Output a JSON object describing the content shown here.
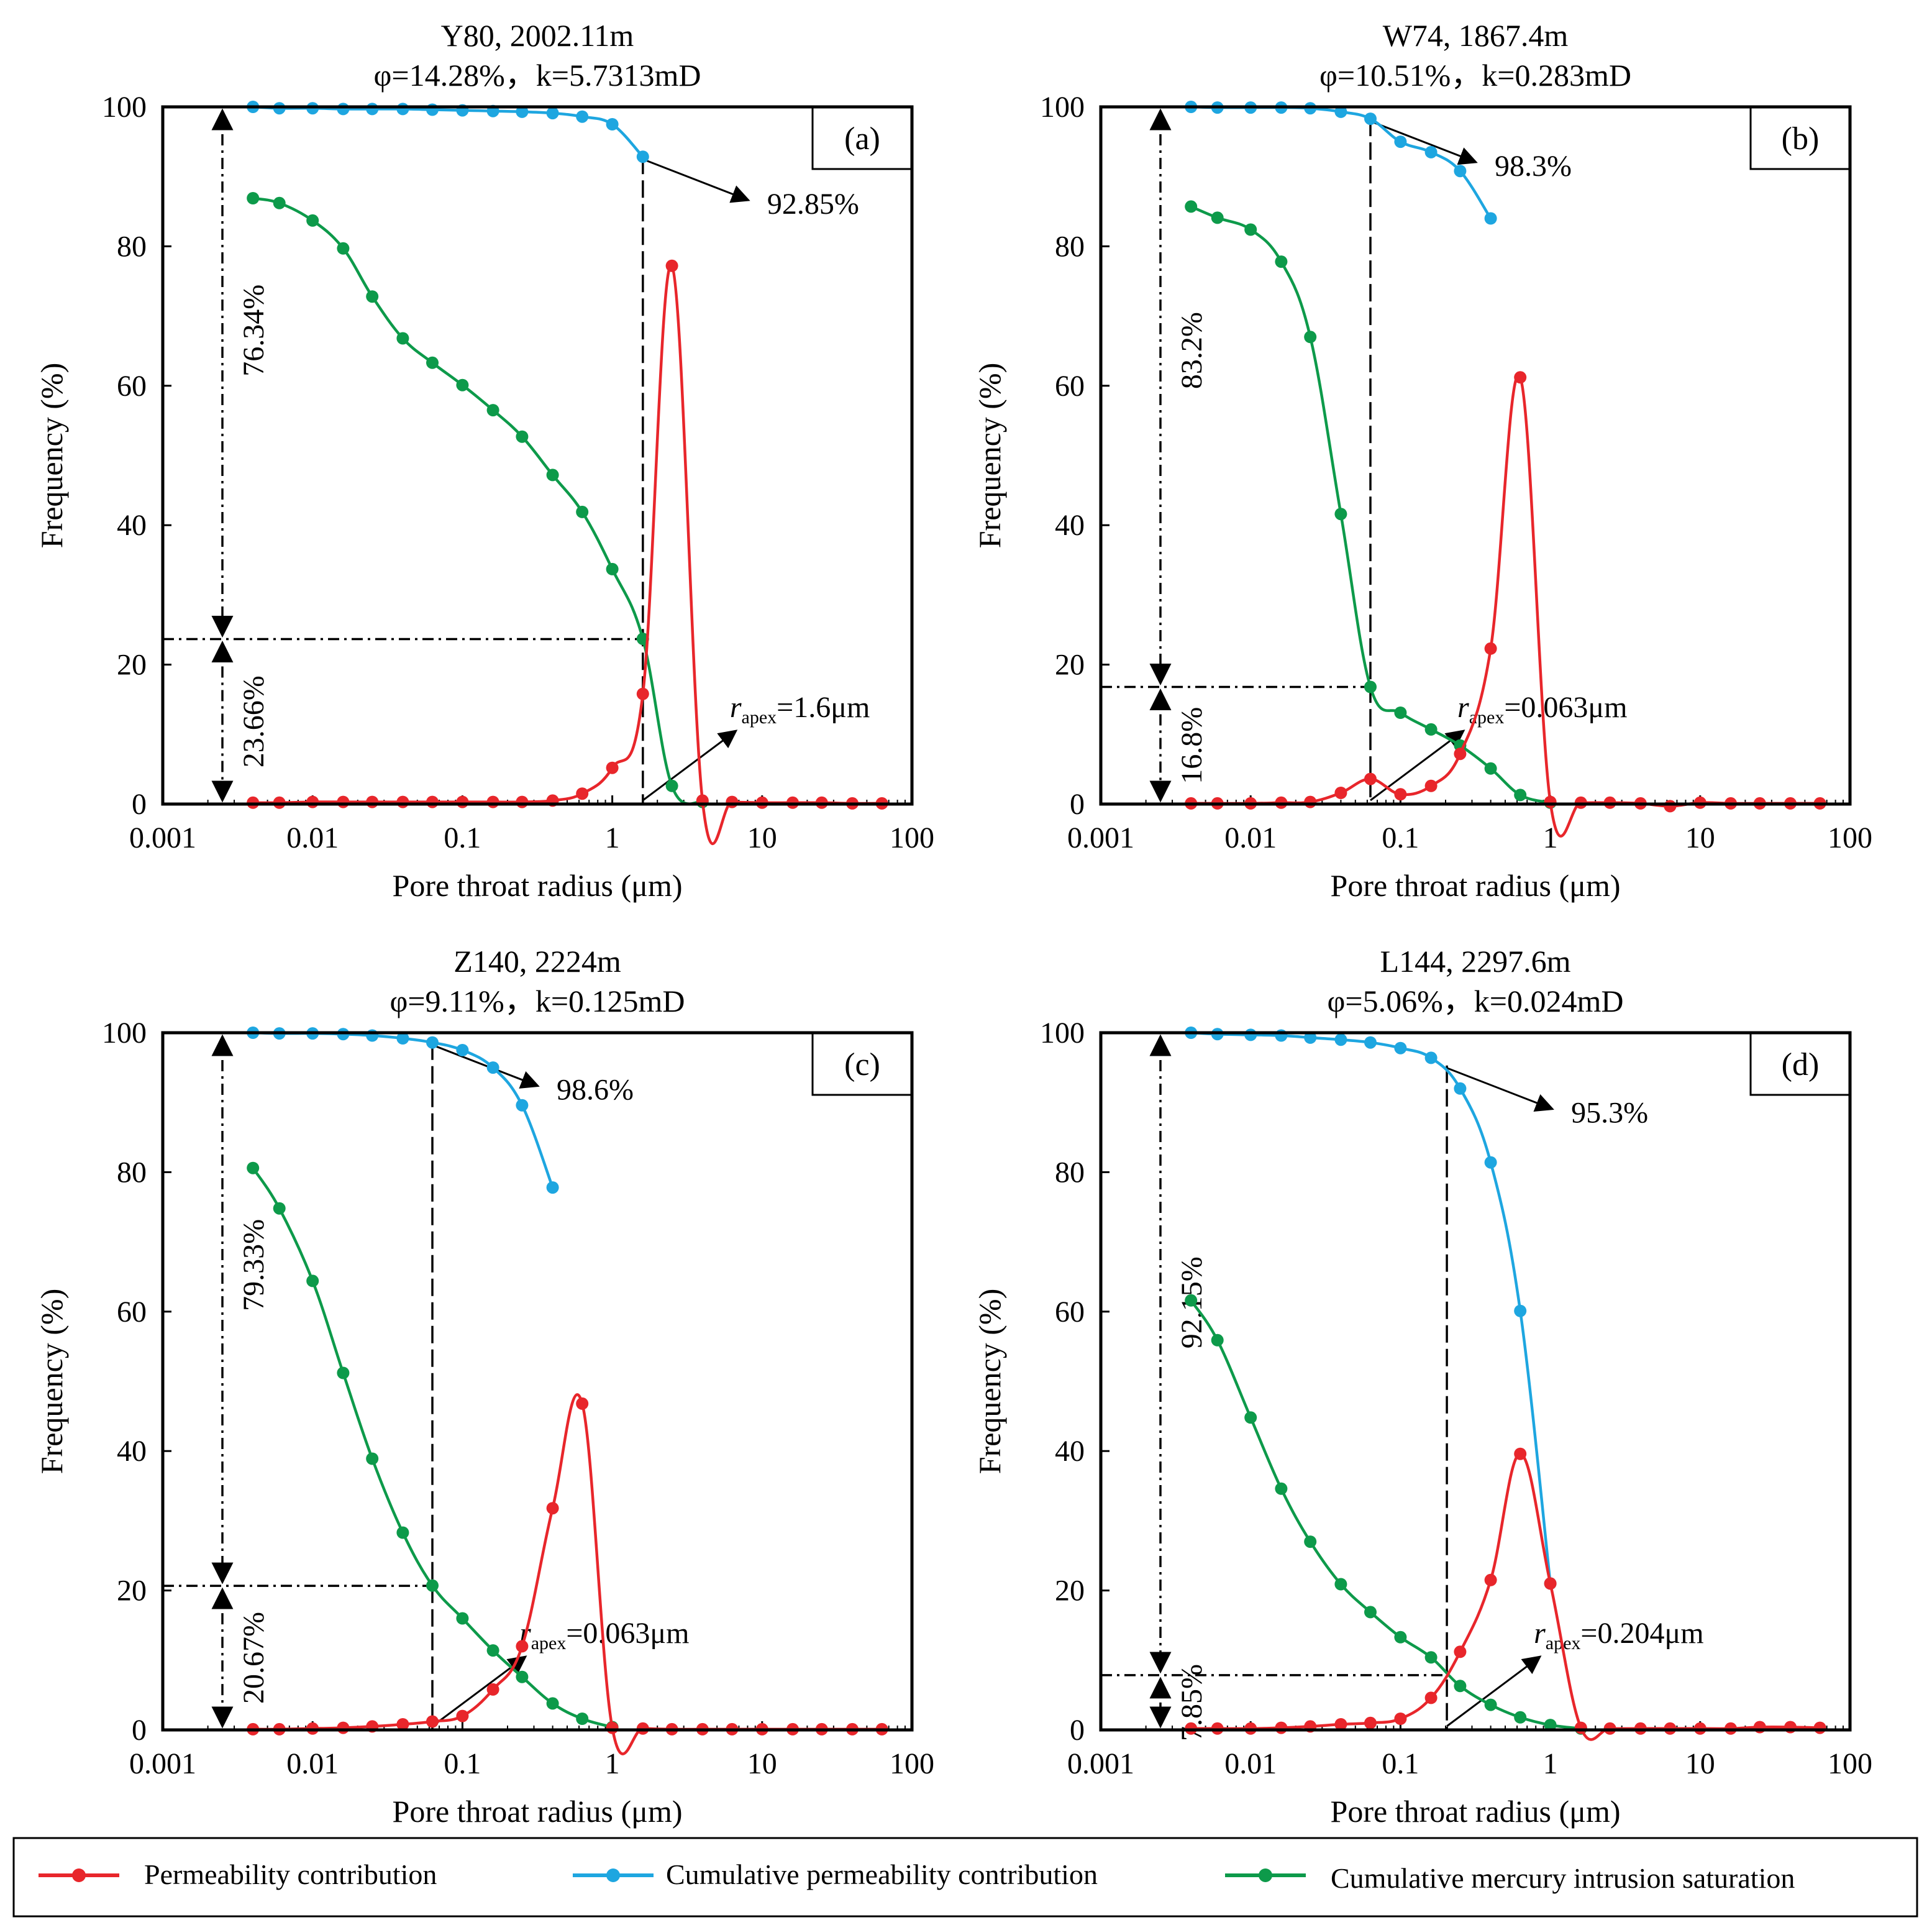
{
  "colors": {
    "permeability_contribution": "#e8262b",
    "cumulative_permeability_contribution": "#1ea6e0",
    "cumulative_mercury_intrusion_saturation": "#0d9a4a"
  },
  "legend": [
    {
      "key": "permeability_contribution",
      "label": "Permeability contribution"
    },
    {
      "key": "cumulative_permeability_contribution",
      "label": "Cumulative permeability contribution"
    },
    {
      "key": "cumulative_mercury_intrusion_saturation",
      "label": "Cumulative mercury intrusion saturation"
    }
  ],
  "chart_data": [
    {
      "type": "line",
      "panel_label": "(a)",
      "title": "Y80, 2002.11m",
      "subtitle": "φ=14.28%，k=5.7313mD",
      "xlabel": "Pore throat radius (μm)",
      "ylabel": "Frequency (%)",
      "xscale": "log",
      "xlim": [
        0.001,
        100
      ],
      "ylim": [
        0,
        100
      ],
      "xticks": [
        "0.001",
        "0.01",
        "0.1",
        "1",
        "10",
        "100"
      ],
      "yticks": [
        "0",
        "20",
        "40",
        "60",
        "80",
        "100"
      ],
      "x": [
        0.004,
        0.006,
        0.01,
        0.016,
        0.025,
        0.04,
        0.063,
        0.1,
        0.16,
        0.25,
        0.4,
        0.63,
        1.0,
        1.6,
        2.5,
        4.0,
        6.3,
        10,
        16,
        25,
        40,
        63
      ],
      "series": [
        {
          "name": "Permeability contribution",
          "key": "permeability_contribution",
          "values": [
            0.2,
            0.2,
            0.3,
            0.3,
            0.3,
            0.3,
            0.3,
            0.3,
            0.3,
            0.3,
            0.5,
            1.5,
            5.2,
            15.8,
            77.2,
            0.5,
            0.3,
            0.2,
            0.2,
            0.2,
            0.1,
            0.1
          ]
        },
        {
          "name": "Cumulative permeability contribution",
          "key": "cumulative_permeability_contribution",
          "values": [
            100,
            99.8,
            99.8,
            99.7,
            99.7,
            99.7,
            99.6,
            99.5,
            99.4,
            99.3,
            99.1,
            98.6,
            97.5,
            92.85,
            null,
            null,
            null,
            null,
            null,
            null,
            null,
            null
          ]
        },
        {
          "name": "Cumulative mercury intrusion saturation",
          "key": "cumulative_mercury_intrusion_saturation",
          "values": [
            86.9,
            86.2,
            83.7,
            79.7,
            72.8,
            66.8,
            63.3,
            60.1,
            56.5,
            52.7,
            47.2,
            41.9,
            33.7,
            23.7,
            2.6,
            0.3,
            null,
            null,
            null,
            null,
            null,
            null
          ]
        }
      ],
      "annotations": {
        "upper_pct": "76.34%",
        "lower_pct": "23.66%",
        "split_y": 23.66,
        "apex_x": 1.6,
        "cum_point_y": 92.85,
        "cum_label": "92.85%",
        "r_apex_italic": "r",
        "r_apex_sub": "apex",
        "r_apex_value": "=1.6μm"
      }
    },
    {
      "type": "line",
      "panel_label": "(b)",
      "title": "W74, 1867.4m",
      "subtitle": "φ=10.51%，k=0.283mD",
      "xlabel": "Pore throat radius (μm)",
      "ylabel": "Frequency (%)",
      "xscale": "log",
      "xlim": [
        0.001,
        100
      ],
      "ylim": [
        0,
        100
      ],
      "xticks": [
        "0.001",
        "0.01",
        "0.1",
        "1",
        "10",
        "100"
      ],
      "yticks": [
        "0",
        "20",
        "40",
        "60",
        "80",
        "100"
      ],
      "x": [
        0.004,
        0.006,
        0.01,
        0.016,
        0.025,
        0.04,
        0.063,
        0.1,
        0.16,
        0.25,
        0.4,
        0.63,
        1.0,
        1.6,
        2.5,
        4.0,
        6.3,
        10,
        16,
        25,
        40,
        63
      ],
      "series": [
        {
          "name": "Permeability contribution",
          "key": "permeability_contribution",
          "values": [
            0.1,
            0.1,
            0.1,
            0.2,
            0.3,
            1.6,
            3.6,
            1.4,
            2.6,
            7.2,
            22.3,
            61.2,
            0.3,
            0.2,
            0.2,
            0.1,
            -0.3,
            0.2,
            0.1,
            0.1,
            0.1,
            0.1
          ]
        },
        {
          "name": "Cumulative permeability contribution",
          "key": "cumulative_permeability_contribution",
          "values": [
            100,
            99.9,
            99.9,
            99.9,
            99.8,
            99.3,
            98.3,
            95.0,
            93.5,
            90.8,
            84.0,
            null,
            null,
            null,
            null,
            null,
            null,
            null,
            null,
            null,
            null,
            null
          ]
        },
        {
          "name": "Cumulative mercury intrusion saturation",
          "key": "cumulative_mercury_intrusion_saturation",
          "values": [
            85.7,
            84.1,
            82.4,
            77.8,
            67.0,
            41.6,
            16.8,
            13.1,
            10.7,
            8.4,
            5.1,
            1.3,
            0.2,
            null,
            null,
            null,
            null,
            null,
            null,
            null,
            null,
            null
          ]
        }
      ],
      "annotations": {
        "upper_pct": "83.2%",
        "lower_pct": "16.8%",
        "split_y": 16.8,
        "apex_x": 0.063,
        "cum_point_y": 98.3,
        "cum_label": "98.3%",
        "r_apex_italic": "r",
        "r_apex_sub": "apex",
        "r_apex_value": "=0.063μm"
      }
    },
    {
      "type": "line",
      "panel_label": "(c)",
      "title": "Z140, 2224m",
      "subtitle": "φ=9.11%，k=0.125mD",
      "xlabel": "Pore throat radius (μm)",
      "ylabel": "Frequency (%)",
      "xscale": "log",
      "xlim": [
        0.001,
        100
      ],
      "ylim": [
        0,
        100
      ],
      "xticks": [
        "0.001",
        "0.01",
        "0.1",
        "1",
        "10",
        "100"
      ],
      "yticks": [
        "0",
        "20",
        "40",
        "60",
        "80",
        "100"
      ],
      "x": [
        0.004,
        0.006,
        0.01,
        0.016,
        0.025,
        0.04,
        0.063,
        0.1,
        0.16,
        0.25,
        0.4,
        0.63,
        1.0,
        1.6,
        2.5,
        4.0,
        6.3,
        10,
        16,
        25,
        40,
        63
      ],
      "series": [
        {
          "name": "Permeability contribution",
          "key": "permeability_contribution",
          "values": [
            0.1,
            0.1,
            0.2,
            0.3,
            0.5,
            0.8,
            1.2,
            2.0,
            5.8,
            12.0,
            31.8,
            46.8,
            0.3,
            0.2,
            0.1,
            0.1,
            0.1,
            0.1,
            0.1,
            0.1,
            0.1,
            0.1
          ]
        },
        {
          "name": "Cumulative permeability contribution",
          "key": "cumulative_permeability_contribution",
          "values": [
            100,
            99.9,
            99.9,
            99.8,
            99.6,
            99.2,
            98.6,
            97.5,
            95.0,
            89.6,
            77.8,
            null,
            null,
            null,
            null,
            null,
            null,
            null,
            null,
            null,
            null,
            null
          ]
        },
        {
          "name": "Cumulative mercury intrusion saturation",
          "key": "cumulative_mercury_intrusion_saturation",
          "values": [
            80.6,
            74.8,
            64.4,
            51.2,
            38.9,
            28.3,
            20.7,
            16.0,
            11.4,
            7.6,
            3.8,
            1.6,
            0.4,
            null,
            null,
            null,
            null,
            null,
            null,
            null,
            null,
            null
          ]
        }
      ],
      "annotations": {
        "upper_pct": "79.33%",
        "lower_pct": "20.67%",
        "split_y": 20.67,
        "apex_x": 0.063,
        "cum_point_y": 98.6,
        "cum_label": "98.6%",
        "r_apex_italic": "r",
        "r_apex_sub": "apex",
        "r_apex_value": "=0.063μm"
      }
    },
    {
      "type": "line",
      "panel_label": "(d)",
      "title": "L144, 2297.6m",
      "subtitle": "φ=5.06%，k=0.024mD",
      "xlabel": "Pore throat radius (μm)",
      "ylabel": "Frequency (%)",
      "xscale": "log",
      "xlim": [
        0.001,
        100
      ],
      "ylim": [
        0,
        100
      ],
      "xticks": [
        "0.001",
        "0.01",
        "0.1",
        "1",
        "10",
        "100"
      ],
      "yticks": [
        "0",
        "20",
        "40",
        "60",
        "80",
        "100"
      ],
      "x": [
        0.004,
        0.006,
        0.01,
        0.016,
        0.025,
        0.04,
        0.063,
        0.1,
        0.16,
        0.25,
        0.4,
        0.63,
        1.0,
        1.6,
        2.5,
        4.0,
        6.3,
        10,
        16,
        25,
        40,
        63
      ],
      "series": [
        {
          "name": "Permeability contribution",
          "key": "permeability_contribution",
          "values": [
            0.2,
            0.2,
            0.2,
            0.3,
            0.5,
            0.8,
            1.0,
            1.6,
            4.6,
            11.2,
            21.5,
            39.6,
            21.0,
            0.3,
            0.2,
            0.2,
            0.2,
            0.2,
            0.2,
            0.4,
            0.4,
            0.3
          ]
        },
        {
          "name": "Cumulative permeability contribution",
          "key": "cumulative_permeability_contribution",
          "values": [
            100,
            99.8,
            99.7,
            99.6,
            99.3,
            99.0,
            98.6,
            97.8,
            96.4,
            92.0,
            81.4,
            60.1,
            21.0,
            null,
            null,
            null,
            null,
            null,
            null,
            null,
            null,
            null
          ]
        },
        {
          "name": "Cumulative mercury intrusion saturation",
          "key": "cumulative_mercury_intrusion_saturation",
          "values": [
            61.6,
            55.9,
            44.8,
            34.6,
            27.0,
            20.9,
            16.9,
            13.3,
            10.4,
            6.3,
            3.6,
            1.8,
            0.7,
            0.2,
            null,
            null,
            null,
            null,
            null,
            null,
            null,
            null
          ]
        }
      ],
      "annotations": {
        "upper_pct": "92.15%",
        "lower_pct": "7.85%",
        "split_y": 7.85,
        "apex_x": 0.204,
        "cum_point_y": 95.3,
        "cum_label": "95.3%",
        "r_apex_italic": "r",
        "r_apex_sub": "apex",
        "r_apex_value": "=0.204μm"
      }
    }
  ]
}
